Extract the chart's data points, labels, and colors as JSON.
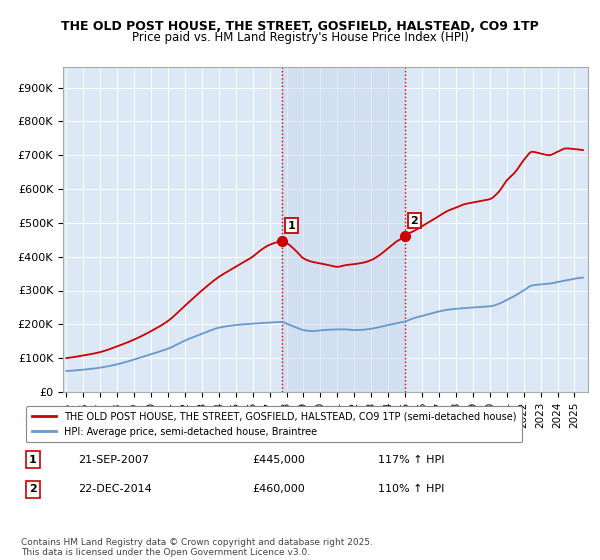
{
  "title": "THE OLD POST HOUSE, THE STREET, GOSFIELD, HALSTEAD, CO9 1TP",
  "subtitle": "Price paid vs. HM Land Registry's House Price Index (HPI)",
  "ylabel_ticks": [
    "£0",
    "£100K",
    "£200K",
    "£300K",
    "£400K",
    "£500K",
    "£600K",
    "£700K",
    "£800K",
    "£900K"
  ],
  "ytick_values": [
    0,
    100000,
    200000,
    300000,
    400000,
    500000,
    600000,
    700000,
    800000,
    900000
  ],
  "ylim": [
    0,
    960000
  ],
  "xlim_start": 1994.8,
  "xlim_end": 2025.8,
  "sale1_x": 2007.72,
  "sale1_y": 445000,
  "sale1_label": "1",
  "sale2_x": 2014.97,
  "sale2_y": 460000,
  "sale2_label": "2",
  "legend_line1": "THE OLD POST HOUSE, THE STREET, GOSFIELD, HALSTEAD, CO9 1TP (semi-detached house)",
  "legend_line2": "HPI: Average price, semi-detached house, Braintree",
  "annot1_box": "1",
  "annot1_date": "21-SEP-2007",
  "annot1_price": "£445,000",
  "annot1_hpi": "117% ↑ HPI",
  "annot2_box": "2",
  "annot2_date": "22-DEC-2014",
  "annot2_price": "£460,000",
  "annot2_hpi": "110% ↑ HPI",
  "footnote": "Contains HM Land Registry data © Crown copyright and database right 2025.\nThis data is licensed under the Open Government Licence v3.0.",
  "line_color_red": "#cc0000",
  "line_color_blue": "#6699cc",
  "bg_color": "#dce8f5",
  "grid_color": "#ffffff",
  "vline_color": "#cc0000",
  "span_color": "#c8d8ee"
}
